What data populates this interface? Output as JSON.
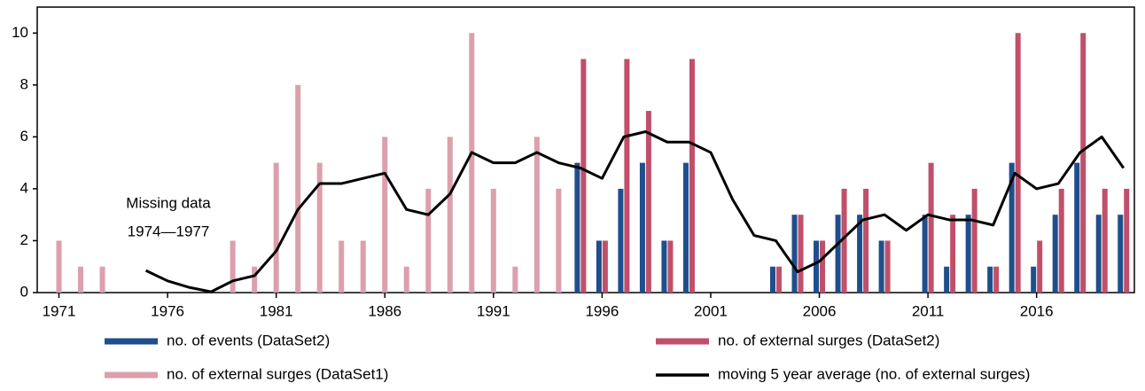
{
  "chart_data": {
    "type": "bar",
    "x": [
      1971,
      1972,
      1973,
      1974,
      1975,
      1976,
      1977,
      1978,
      1979,
      1980,
      1981,
      1982,
      1983,
      1984,
      1985,
      1986,
      1987,
      1988,
      1989,
      1990,
      1991,
      1992,
      1993,
      1994,
      1995,
      1996,
      1997,
      1998,
      1999,
      2000,
      2001,
      2002,
      2003,
      2004,
      2005,
      2006,
      2007,
      2008,
      2009,
      2010,
      2011,
      2012,
      2013,
      2014,
      2015,
      2016,
      2017,
      2018,
      2019,
      2020
    ],
    "series": [
      {
        "name": "no. of events (DataSet2)",
        "color": "#1f4e8c",
        "type": "bar",
        "offset": -1,
        "values": [
          null,
          null,
          null,
          null,
          null,
          null,
          null,
          null,
          null,
          null,
          null,
          null,
          null,
          null,
          null,
          null,
          null,
          null,
          null,
          null,
          null,
          null,
          null,
          null,
          5,
          2,
          4,
          5,
          2,
          5,
          null,
          null,
          null,
          1,
          3,
          2,
          3,
          3,
          2,
          null,
          3,
          1,
          3,
          1,
          5,
          1,
          3,
          5,
          3,
          3
        ]
      },
      {
        "name": "no. of external surges (DataSet2)",
        "color": "#c0506a",
        "type": "bar",
        "offset": 1,
        "values": [
          null,
          null,
          null,
          null,
          null,
          null,
          null,
          null,
          null,
          null,
          null,
          null,
          null,
          null,
          null,
          null,
          null,
          null,
          null,
          null,
          null,
          null,
          null,
          null,
          9,
          2,
          9,
          7,
          2,
          9,
          null,
          null,
          null,
          1,
          3,
          2,
          4,
          4,
          2,
          null,
          5,
          3,
          4,
          1,
          10,
          2,
          4,
          10,
          4,
          4
        ]
      },
      {
        "name": "no. of external surges (DataSet1)",
        "color": "#dba0ac",
        "type": "bar",
        "offset": 0,
        "values": [
          2,
          1,
          1,
          null,
          null,
          null,
          null,
          null,
          2,
          1,
          5,
          8,
          5,
          2,
          2,
          6,
          1,
          4,
          6,
          10,
          4,
          1,
          6,
          4,
          null,
          null,
          null,
          null,
          null,
          null,
          null,
          null,
          null,
          null,
          null,
          null,
          null,
          null,
          null,
          null,
          null,
          null,
          null,
          null,
          null,
          null,
          null,
          null,
          null,
          null
        ]
      },
      {
        "name": "moving 5 year average (no. of external surges)",
        "color": "#000000",
        "type": "line",
        "values": [
          null,
          null,
          null,
          null,
          0.85,
          0.45,
          0.2,
          0.03,
          0.45,
          0.65,
          1.6,
          3.2,
          4.2,
          4.2,
          4.4,
          4.6,
          3.2,
          3.0,
          3.8,
          5.4,
          5.0,
          5.0,
          5.4,
          5.0,
          4.8,
          4.4,
          6.0,
          6.2,
          5.8,
          5.8,
          5.4,
          3.6,
          2.2,
          2.0,
          0.8,
          1.2,
          2.0,
          2.8,
          3.0,
          2.4,
          3.0,
          2.8,
          2.8,
          2.6,
          4.6,
          4.0,
          4.2,
          5.4,
          6.0,
          4.8
        ]
      }
    ],
    "annotation": [
      "Missing data",
      "1974—1977"
    ],
    "xlim": [
      1970,
      2020.5
    ],
    "xticks": [
      1971,
      1976,
      1981,
      1986,
      1991,
      1996,
      2001,
      2006,
      2011,
      2016
    ],
    "ylim": [
      0,
      11
    ],
    "yticks": [
      0,
      2,
      4,
      6,
      8,
      10
    ]
  }
}
